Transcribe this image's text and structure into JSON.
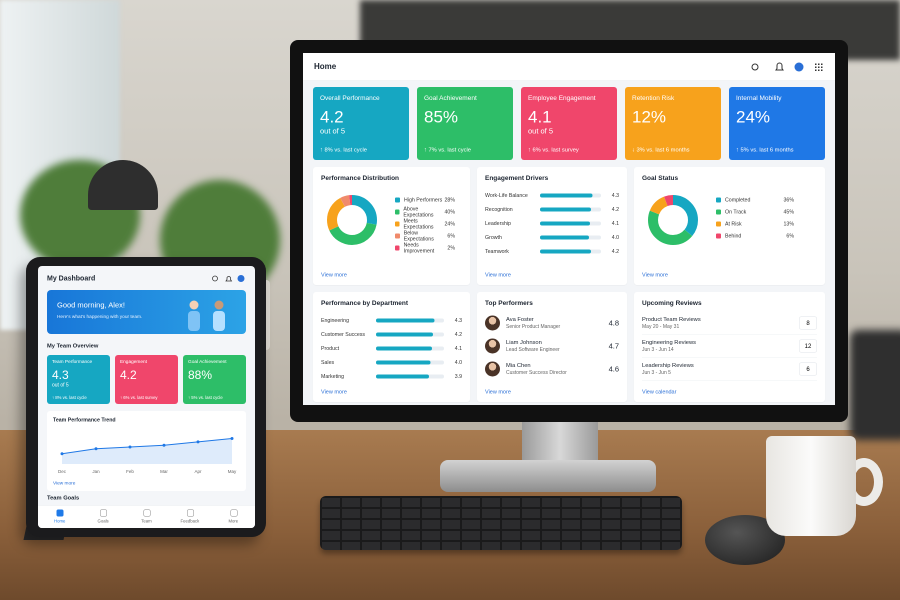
{
  "monitor": {
    "header": {
      "title": "Home"
    },
    "kpis": [
      {
        "title": "Overall Performance",
        "value": "4.2",
        "sub": "out of 5",
        "delta": "↑ 8% vs. last cycle",
        "color": "#16a7c2"
      },
      {
        "title": "Goal Achievement",
        "value": "85%",
        "delta": "↑ 7% vs. last cycle",
        "color": "#2dbe68"
      },
      {
        "title": "Employee Engagement",
        "value": "4.1",
        "sub": "out of 5",
        "delta": "↑ 6% vs. last survey",
        "color": "#f0466b"
      },
      {
        "title": "Retention Risk",
        "value": "12%",
        "delta": "↓ 3% vs. last 6 months",
        "color": "#f7a21c"
      },
      {
        "title": "Internal Mobility",
        "value": "24%",
        "delta": "↑ 5% vs. last 6 months",
        "color": "#1f78e6"
      }
    ],
    "performance_distribution": {
      "title": "Performance Distribution",
      "items": [
        {
          "label": "High Performers",
          "value": 28,
          "value_label": "28%",
          "color": "#16a7c2"
        },
        {
          "label": "Above Expectations",
          "value": 40,
          "value_label": "40%",
          "color": "#2dbe68"
        },
        {
          "label": "Meets Expectations",
          "value": 24,
          "value_label": "24%",
          "color": "#f7a21c"
        },
        {
          "label": "Below Expectations",
          "value": 6,
          "value_label": "6%",
          "color": "#f08a6b"
        },
        {
          "label": "Needs Improvement",
          "value": 2,
          "value_label": "2%",
          "color": "#f0466b"
        }
      ],
      "link": "View more"
    },
    "engagement_drivers": {
      "title": "Engagement Drivers",
      "xlim": [
        0,
        5
      ],
      "color": "#16a7c2",
      "items": [
        {
          "label": "Work-Life Balance",
          "value": 4.3
        },
        {
          "label": "Recognition",
          "value": 4.2
        },
        {
          "label": "Leadership",
          "value": 4.1
        },
        {
          "label": "Growth",
          "value": 4,
          "value_label": "4.0"
        },
        {
          "label": "Teamwork",
          "value": 4.2
        }
      ],
      "link": "View more"
    },
    "goal_status": {
      "title": "Goal Status",
      "items": [
        {
          "label": "Completed",
          "value": 36,
          "value_label": "36%",
          "color": "#16a7c2"
        },
        {
          "label": "On Track",
          "value": 45,
          "value_label": "45%",
          "color": "#2dbe68"
        },
        {
          "label": "At Risk",
          "value": 13,
          "value_label": "13%",
          "color": "#f7a21c"
        },
        {
          "label": "Behind",
          "value": 6,
          "value_label": "6%",
          "color": "#f0466b"
        }
      ],
      "link": "View more"
    },
    "performance_by_department": {
      "title": "Performance by Department",
      "xlim": [
        0,
        5
      ],
      "color": "#16a7c2",
      "items": [
        {
          "label": "Engineering",
          "value": 4.3
        },
        {
          "label": "Customer Success",
          "value": 4.2
        },
        {
          "label": "Product",
          "value": 4.1
        },
        {
          "label": "Sales",
          "value": 4,
          "value_label": "4.0"
        },
        {
          "label": "Marketing",
          "value": 3.9
        }
      ],
      "link": "View more"
    },
    "top_performers": {
      "title": "Top Performers",
      "items": [
        {
          "name": "Ava Foster",
          "role": "Senior Product Manager",
          "score": 4.8
        },
        {
          "name": "Liam Johnson",
          "role": "Lead Software Engineer",
          "score": 4.7
        },
        {
          "name": "Mia Chen",
          "role": "Customer Success Director",
          "score": 4.6
        }
      ],
      "link": "View more"
    },
    "upcoming_reviews": {
      "title": "Upcoming Reviews",
      "items": [
        {
          "name": "Product Team Reviews",
          "dates": "May 20 - May 31",
          "count": 8
        },
        {
          "name": "Engineering Reviews",
          "dates": "Jun 3 - Jun 14",
          "count": 12
        },
        {
          "name": "Leadership Reviews",
          "dates": "Jun 3 - Jun 5",
          "count": 6
        }
      ],
      "link": "View calendar"
    }
  },
  "tablet": {
    "header": {
      "title": "My Dashboard"
    },
    "banner": {
      "greeting": "Good morning, Alex!",
      "subtitle": "Here's what's happening with your team."
    },
    "overview_title": "My Team Overview",
    "kpis": [
      {
        "title": "Team Performance",
        "value": "4.3",
        "sub": "out of 5",
        "delta": "↑ 8% vs. last cycle",
        "color": "#16a7c2"
      },
      {
        "title": "Engagement",
        "value": "4.2",
        "delta": "↑ 6% vs. last survey",
        "color": "#f0466b"
      },
      {
        "title": "Goal Achievement",
        "value": "88%",
        "delta": "↑ 5% vs. last cycle",
        "color": "#2dbe68"
      }
    ],
    "trend": {
      "title": "Team Performance Trend",
      "categories": [
        "Dec",
        "Jan",
        "Feb",
        "Mar",
        "Apr",
        "May"
      ],
      "values": [
        3.8,
        3.95,
        4.0,
        4.05,
        4.15,
        4.25
      ],
      "ylim": [
        3.5,
        4.5
      ],
      "color": "#1f78e6",
      "link": "View more"
    },
    "goals_title": "Team Goals",
    "nav": [
      "Home",
      "Goals",
      "Team",
      "Feedback",
      "More"
    ]
  }
}
